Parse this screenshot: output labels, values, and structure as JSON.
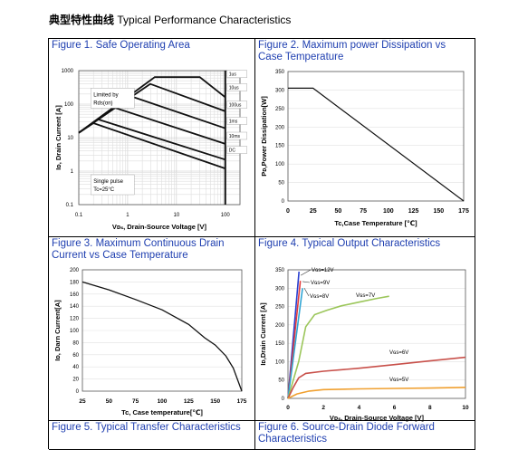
{
  "header": {
    "title_cn": "典型特性曲线",
    "title_en": "Typical Performance Characteristics"
  },
  "captions": {
    "fig1": "Figure 1. Safe Operating Area",
    "fig2": "Figure 2. Maximum power Dissipation vs Case Temperature",
    "fig3": "Figure 3. Maximum Continuous Drain Current vs Case Temperature",
    "fig4": "Figure 4. Typical Output Characteristics",
    "fig5": "Figure 5. Typical Transfer Characteristics",
    "fig6": "Figure 6. Source-Drain Diode Forward Characteristics"
  },
  "chart_data": [
    {
      "id": "fig1",
      "type": "line",
      "title": "Figure 1. Safe Operating Area",
      "xlabel": "Vᴅₛ,  Drain-Source Voltage [V]",
      "ylabel": "Iᴅ, Drain Current [A]",
      "xscale": "log",
      "yscale": "log",
      "xlim": [
        0.1,
        200
      ],
      "ylim": [
        0.1,
        1000
      ],
      "xticks": [
        "0.1",
        "1",
        "10",
        "100"
      ],
      "yticks": [
        "1000",
        "100",
        "10",
        "1",
        "0.1"
      ],
      "annotations": [
        "Limited by",
        "Rds(on)",
        "Single pulse",
        "Tc=25°C"
      ],
      "series": [
        {
          "name": "1us",
          "points": [
            [
              0.1,
              14
            ],
            [
              3.6,
              640
            ],
            [
              30,
              640
            ],
            [
              100,
              160
            ]
          ]
        },
        {
          "name": "10us",
          "points": [
            [
              0.1,
              14
            ],
            [
              2.9,
              400
            ],
            [
              100,
              61
            ]
          ]
        },
        {
          "name": "100us",
          "points": [
            [
              0.1,
              14
            ],
            [
              1.2,
              170
            ],
            [
              100,
              19
            ]
          ]
        },
        {
          "name": "1ms",
          "points": [
            [
              0.1,
              14
            ],
            [
              0.55,
              78
            ],
            [
              100,
              6.5
            ]
          ]
        },
        {
          "name": "10ms",
          "points": [
            [
              0.1,
              14
            ],
            [
              0.25,
              35
            ],
            [
              100,
              2.2
            ]
          ]
        },
        {
          "name": "DC",
          "points": [
            [
              0.1,
              14
            ],
            [
              0.2,
              27
            ],
            [
              100,
              1.2
            ]
          ]
        }
      ],
      "series_labels": [
        "1us",
        "10us",
        "100us",
        "1ms",
        "10ms",
        "DC"
      ]
    },
    {
      "id": "fig2",
      "type": "line",
      "title": "Figure 2. Maximum power Dissipation vs Case Temperature",
      "xlabel": "Tc,Case Temperature [℃]",
      "ylabel": "Pᴅ,Power Dissipation[W]",
      "xlim": [
        0,
        175
      ],
      "ylim": [
        0,
        350
      ],
      "xticks": [
        "0",
        "25",
        "50",
        "75",
        "100",
        "125",
        "150",
        "175"
      ],
      "yticks": [
        "0",
        "50",
        "100",
        "150",
        "200",
        "250",
        "300",
        "350"
      ],
      "series": [
        {
          "points": [
            [
              0,
              305
            ],
            [
              25,
              305
            ],
            [
              175,
              0
            ]
          ]
        }
      ]
    },
    {
      "id": "fig3",
      "type": "line",
      "title": "Figure 3. Maximum Continuous Drain Current vs Case Temperature",
      "xlabel": "Tc, Case temperature[℃]",
      "ylabel": "Iᴅ, Darn Current[A]",
      "xlim": [
        25,
        175
      ],
      "ylim": [
        0,
        200
      ],
      "xticks": [
        "25",
        "50",
        "75",
        "100",
        "125",
        "150",
        "175"
      ],
      "yticks": [
        "0",
        "20",
        "40",
        "60",
        "80",
        "100",
        "120",
        "140",
        "160",
        "180",
        "200"
      ],
      "series": [
        {
          "points": [
            [
              25,
              180
            ],
            [
              50,
              167
            ],
            [
              75,
              151
            ],
            [
              100,
              134
            ],
            [
              125,
              110
            ],
            [
              140,
              88
            ],
            [
              150,
              76
            ],
            [
              160,
              58
            ],
            [
              167,
              38
            ],
            [
              175,
              0
            ]
          ]
        }
      ]
    },
    {
      "id": "fig4",
      "type": "line",
      "title": "Figure 4. Typical Output Characteristics",
      "xlabel": "Vᴅₛ,  Drain-Source Voltage [V]",
      "ylabel": "Iᴅ,Drain Current [A]",
      "xlim": [
        0,
        10
      ],
      "ylim": [
        0,
        350
      ],
      "xticks": [
        "0",
        "2",
        "4",
        "6",
        "8",
        "10"
      ],
      "yticks": [
        "0",
        "50",
        "100",
        "150",
        "200",
        "250",
        "300",
        "350"
      ],
      "series_labels": [
        "Vɢs=12V",
        "Vɢs=9V",
        "Vɢs=8V",
        "Vɢs=7V",
        "Vɢs=6V",
        "Vɢs=5V"
      ],
      "series": [
        {
          "name": "Vɢs=12V",
          "color": "#2a3fcf",
          "points": [
            [
              0,
              0
            ],
            [
              0.62,
              345
            ]
          ]
        },
        {
          "name": "Vɢs=9V",
          "color": "#e23b3b",
          "points": [
            [
              0,
              0
            ],
            [
              0.7,
              320
            ]
          ]
        },
        {
          "name": "Vɢs=8V",
          "color": "#2fa5d4",
          "points": [
            [
              0,
              0
            ],
            [
              0.82,
              300
            ]
          ]
        },
        {
          "name": "Vɢs=7V",
          "color": "#9bc65a",
          "points": [
            [
              0,
              0
            ],
            [
              0.6,
              100
            ],
            [
              1,
              195
            ],
            [
              1.5,
              228
            ],
            [
              2.2,
              240
            ],
            [
              3,
              252
            ],
            [
              4,
              262
            ],
            [
              5,
              272
            ],
            [
              5.7,
              278
            ]
          ]
        },
        {
          "name": "Vɢs=6V",
          "color": "#c8504a",
          "points": [
            [
              0,
              0
            ],
            [
              0.3,
              30
            ],
            [
              0.6,
              56
            ],
            [
              1,
              68
            ],
            [
              2,
              74
            ],
            [
              4,
              82
            ],
            [
              6,
              92
            ],
            [
              8,
              102
            ],
            [
              10,
              112
            ]
          ]
        },
        {
          "name": "Vɢs=5V",
          "color": "#f0a030",
          "points": [
            [
              0,
              0
            ],
            [
              0.5,
              12
            ],
            [
              1.2,
              20
            ],
            [
              2,
              24
            ],
            [
              4,
              26
            ],
            [
              6,
              27
            ],
            [
              8,
              28
            ],
            [
              10,
              30
            ]
          ]
        }
      ]
    }
  ]
}
